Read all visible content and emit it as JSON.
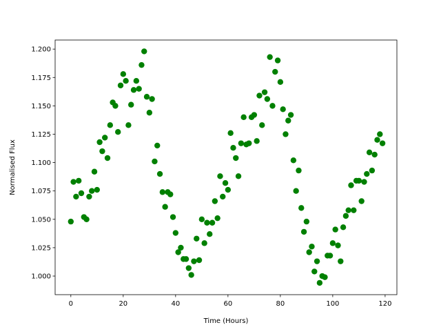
{
  "chart_data": {
    "type": "scatter",
    "title": "",
    "xlabel": "Time (Hours)",
    "ylabel": "Normalised Flux",
    "xlim": [
      -6,
      124.5
    ],
    "ylim": [
      0.9836,
      1.208
    ],
    "xticks": [
      0,
      20,
      40,
      60,
      80,
      100,
      120
    ],
    "xtick_labels": [
      "0",
      "20",
      "40",
      "60",
      "80",
      "100",
      "120"
    ],
    "yticks": [
      1.0,
      1.025,
      1.05,
      1.075,
      1.1,
      1.125,
      1.15,
      1.175,
      1.2
    ],
    "ytick_labels": [
      "1.000",
      "1.025",
      "1.050",
      "1.075",
      "1.100",
      "1.125",
      "1.150",
      "1.175",
      "1.200"
    ],
    "grid": false,
    "marker_color": "#008000",
    "x": [
      0,
      1,
      2,
      3,
      4,
      5,
      6,
      7,
      8,
      9,
      10,
      11,
      12,
      13,
      14,
      15,
      16,
      17,
      18,
      19,
      20,
      21,
      22,
      23,
      24,
      25,
      26,
      27,
      28,
      29,
      30,
      31,
      32,
      33,
      34,
      35,
      36,
      37,
      38,
      39,
      40,
      41,
      42,
      43,
      44,
      45,
      46,
      47,
      48,
      49,
      50,
      51,
      52,
      53,
      54,
      55,
      56,
      57,
      58,
      59,
      60,
      61,
      62,
      63,
      64,
      65,
      66,
      67,
      68,
      69,
      70,
      71,
      72,
      73,
      74,
      75,
      76,
      77,
      78,
      79,
      80,
      81,
      82,
      83,
      84,
      85,
      86,
      87,
      88,
      89,
      90,
      91,
      92,
      93,
      94,
      95,
      96,
      97,
      98,
      99,
      100,
      101,
      102,
      103,
      104,
      105,
      106,
      107,
      108,
      109,
      110,
      111,
      112,
      113,
      114,
      115,
      116,
      117,
      118,
      119
    ],
    "y": [
      1.048,
      1.083,
      1.07,
      1.084,
      1.073,
      1.052,
      1.05,
      1.07,
      1.075,
      1.092,
      1.076,
      1.118,
      1.11,
      1.122,
      1.104,
      1.133,
      1.153,
      1.15,
      1.127,
      1.168,
      1.178,
      1.172,
      1.133,
      1.151,
      1.164,
      1.172,
      1.165,
      1.186,
      1.198,
      1.158,
      1.144,
      1.156,
      1.101,
      1.115,
      1.09,
      1.074,
      1.061,
      1.074,
      1.072,
      1.052,
      1.038,
      1.021,
      1.025,
      1.015,
      1.015,
      1.007,
      1.001,
      1.013,
      1.033,
      1.014,
      1.05,
      1.029,
      1.047,
      1.037,
      1.047,
      1.066,
      1.051,
      1.088,
      1.07,
      1.082,
      1.076,
      1.126,
      1.113,
      1.104,
      1.088,
      1.117,
      1.14,
      1.116,
      1.117,
      1.14,
      1.142,
      1.119,
      1.159,
      1.133,
      1.162,
      1.156,
      1.193,
      1.15,
      1.18,
      1.19,
      1.171,
      1.147,
      1.125,
      1.137,
      1.142,
      1.102,
      1.075,
      1.093,
      1.06,
      1.039,
      1.048,
      1.021,
      1.026,
      1.004,
      1.013,
      0.994,
      1.0,
      0.999,
      1.018,
      1.018,
      1.029,
      1.041,
      1.027,
      1.013,
      1.043,
      1.053,
      1.058,
      1.08,
      1.058,
      1.084,
      1.084,
      1.066,
      1.083,
      1.09,
      1.109,
      1.093,
      1.107,
      1.12,
      1.125,
      1.117
    ]
  }
}
